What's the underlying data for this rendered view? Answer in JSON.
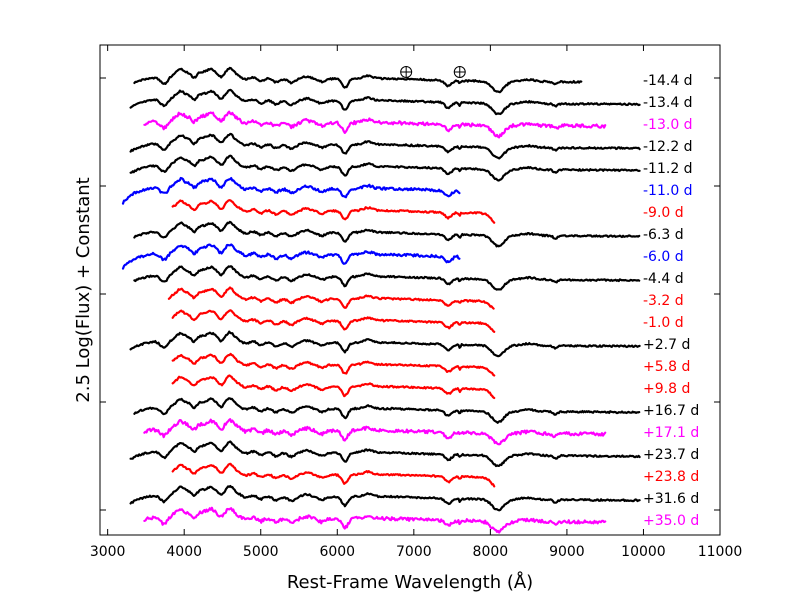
{
  "chart_data": {
    "type": "line",
    "title": "",
    "xlabel": "Rest-Frame Wavelength (Å)",
    "ylabel": "2.5 Log(Flux) + Constant",
    "xlim": [
      2900,
      11000
    ],
    "x_ticks": [
      3000,
      4000,
      5000,
      6000,
      7000,
      8000,
      9000,
      10000,
      11000
    ],
    "y_ticks_labeled": false,
    "grid": false,
    "colors": {
      "black": "#000000",
      "magenta": "#ff00ff",
      "blue": "#0000ff",
      "red": "#ff0000"
    },
    "telluric_markers": {
      "symbol": "earth-icon",
      "wavelengths": [
        6900,
        7600
      ]
    },
    "series": [
      {
        "name": "-14.4 d",
        "color": "black",
        "wmin": 3350,
        "wmax": 9200
      },
      {
        "name": "-13.4 d",
        "color": "black",
        "wmin": 3300,
        "wmax": 9950
      },
      {
        "name": "-13.0 d",
        "color": "magenta",
        "wmin": 3480,
        "wmax": 9500
      },
      {
        "name": "-12.2 d",
        "color": "black",
        "wmin": 3300,
        "wmax": 9950
      },
      {
        "name": "-11.2 d",
        "color": "black",
        "wmin": 3300,
        "wmax": 9950
      },
      {
        "name": "-11.0 d",
        "color": "blue",
        "wmin": 3200,
        "wmax": 7600
      },
      {
        "name": "-9.0 d",
        "color": "red",
        "wmin": 3850,
        "wmax": 8050
      },
      {
        "name": "-6.3 d",
        "color": "black",
        "wmin": 3350,
        "wmax": 9950
      },
      {
        "name": "-6.0 d",
        "color": "blue",
        "wmin": 3200,
        "wmax": 7600
      },
      {
        "name": "-4.4 d",
        "color": "black",
        "wmin": 3350,
        "wmax": 9950
      },
      {
        "name": "-3.2 d",
        "color": "red",
        "wmin": 3800,
        "wmax": 8050
      },
      {
        "name": "-1.0 d",
        "color": "red",
        "wmin": 3850,
        "wmax": 8050
      },
      {
        "name": "+2.7 d",
        "color": "black",
        "wmin": 3300,
        "wmax": 9950
      },
      {
        "name": "+5.8 d",
        "color": "red",
        "wmin": 3850,
        "wmax": 8050
      },
      {
        "name": "+9.8 d",
        "color": "red",
        "wmin": 3850,
        "wmax": 8050
      },
      {
        "name": "+16.7 d",
        "color": "black",
        "wmin": 3350,
        "wmax": 9950
      },
      {
        "name": "+17.1 d",
        "color": "magenta",
        "wmin": 3480,
        "wmax": 9500
      },
      {
        "name": "+23.7 d",
        "color": "black",
        "wmin": 3300,
        "wmax": 9950
      },
      {
        "name": "+23.8 d",
        "color": "red",
        "wmin": 3850,
        "wmax": 8050
      },
      {
        "name": "+31.6 d",
        "color": "black",
        "wmin": 3300,
        "wmax": 9950
      },
      {
        "name": "+35.0 d",
        "color": "magenta",
        "wmin": 3480,
        "wmax": 9500
      }
    ]
  }
}
